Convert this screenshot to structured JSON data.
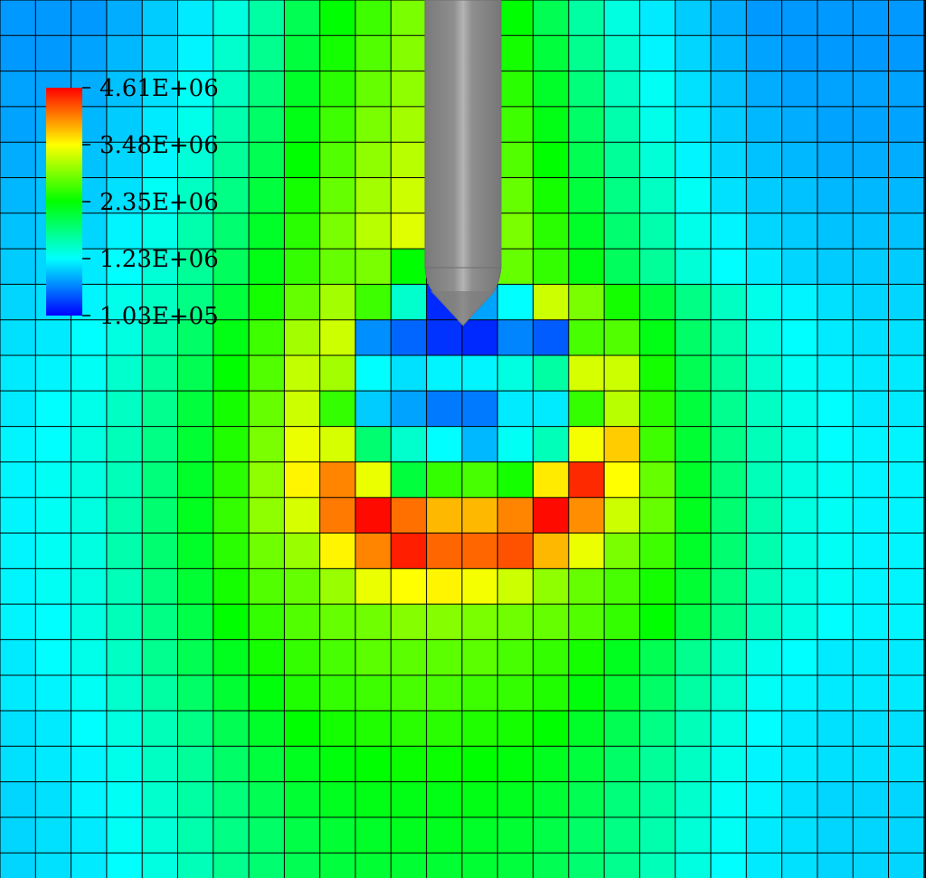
{
  "chart_data": {
    "type": "heatmap",
    "title": "",
    "xlabel": "",
    "ylabel": "",
    "grid": true,
    "legend_placement": "top-left",
    "colorscale": [
      "#0000ff",
      "#00ffff",
      "#00ff00",
      "#ffff00",
      "#ff0000"
    ],
    "colorbar": {
      "min": 103000,
      "max": 4610000,
      "tick_labels": [
        "4.61E+06",
        "3.48E+06",
        "2.35E+06",
        "1.23E+06",
        "1.03E+05"
      ]
    },
    "indenter": {
      "color": "#8c8c8c",
      "shape": "cylinder-conical-tip"
    },
    "rows": [
      [
        0.15,
        0.15,
        0.15,
        0.17,
        0.2,
        0.23,
        0.28,
        0.34,
        0.42,
        0.5,
        0.56,
        0.62,
        0.62,
        0.56,
        0.5,
        0.42,
        0.34,
        0.28,
        0.23,
        0.2,
        0.17,
        0.15,
        0.15,
        0.15,
        0.15,
        0.15
      ],
      [
        0.15,
        0.15,
        0.16,
        0.18,
        0.21,
        0.24,
        0.3,
        0.36,
        0.44,
        0.52,
        0.58,
        0.63,
        0.63,
        0.58,
        0.52,
        0.44,
        0.36,
        0.3,
        0.24,
        0.21,
        0.18,
        0.16,
        0.15,
        0.15,
        0.15,
        0.15
      ],
      [
        0.16,
        0.16,
        0.17,
        0.19,
        0.22,
        0.26,
        0.31,
        0.38,
        0.46,
        0.54,
        0.6,
        0.64,
        0.64,
        0.6,
        0.54,
        0.46,
        0.38,
        0.31,
        0.26,
        0.22,
        0.19,
        0.17,
        0.16,
        0.16,
        0.16,
        0.16
      ],
      [
        0.16,
        0.17,
        0.18,
        0.2,
        0.23,
        0.27,
        0.33,
        0.4,
        0.48,
        0.56,
        0.62,
        0.66,
        0.66,
        0.62,
        0.56,
        0.48,
        0.4,
        0.33,
        0.27,
        0.23,
        0.2,
        0.18,
        0.17,
        0.16,
        0.16,
        0.16
      ],
      [
        0.17,
        0.18,
        0.19,
        0.21,
        0.24,
        0.29,
        0.35,
        0.42,
        0.5,
        0.58,
        0.64,
        0.68,
        0.68,
        0.64,
        0.58,
        0.5,
        0.42,
        0.35,
        0.29,
        0.24,
        0.21,
        0.19,
        0.18,
        0.17,
        0.17,
        0.17
      ],
      [
        0.18,
        0.19,
        0.2,
        0.22,
        0.26,
        0.31,
        0.37,
        0.44,
        0.52,
        0.6,
        0.66,
        0.7,
        0.7,
        0.66,
        0.6,
        0.52,
        0.44,
        0.37,
        0.31,
        0.26,
        0.22,
        0.2,
        0.19,
        0.18,
        0.18,
        0.18
      ],
      [
        0.19,
        0.2,
        0.21,
        0.24,
        0.27,
        0.33,
        0.39,
        0.46,
        0.54,
        0.62,
        0.68,
        0.72,
        0.72,
        0.68,
        0.62,
        0.54,
        0.46,
        0.39,
        0.33,
        0.27,
        0.24,
        0.21,
        0.2,
        0.19,
        0.19,
        0.19
      ],
      [
        0.2,
        0.21,
        0.23,
        0.25,
        0.29,
        0.35,
        0.41,
        0.48,
        0.55,
        0.6,
        0.62,
        0.5,
        0.48,
        0.14,
        0.6,
        0.55,
        0.48,
        0.41,
        0.35,
        0.29,
        0.25,
        0.23,
        0.21,
        0.2,
        0.2,
        0.2
      ],
      [
        0.21,
        0.22,
        0.24,
        0.27,
        0.31,
        0.37,
        0.44,
        0.52,
        0.6,
        0.66,
        0.56,
        0.3,
        0.04,
        0.16,
        0.25,
        0.7,
        0.62,
        0.52,
        0.44,
        0.37,
        0.31,
        0.27,
        0.24,
        0.22,
        0.21,
        0.21
      ],
      [
        0.22,
        0.23,
        0.25,
        0.28,
        0.33,
        0.4,
        0.48,
        0.56,
        0.66,
        0.7,
        0.14,
        0.1,
        0.05,
        0.04,
        0.13,
        0.09,
        0.57,
        0.58,
        0.48,
        0.4,
        0.33,
        0.28,
        0.25,
        0.23,
        0.22,
        0.22
      ],
      [
        0.23,
        0.24,
        0.26,
        0.3,
        0.35,
        0.42,
        0.5,
        0.58,
        0.69,
        0.66,
        0.25,
        0.22,
        0.24,
        0.24,
        0.28,
        0.34,
        0.71,
        0.7,
        0.52,
        0.42,
        0.35,
        0.3,
        0.26,
        0.24,
        0.23,
        0.23
      ],
      [
        0.23,
        0.25,
        0.27,
        0.31,
        0.36,
        0.44,
        0.52,
        0.6,
        0.7,
        0.55,
        0.2,
        0.16,
        0.12,
        0.12,
        0.23,
        0.23,
        0.55,
        0.68,
        0.54,
        0.44,
        0.36,
        0.31,
        0.27,
        0.25,
        0.23,
        0.23
      ],
      [
        0.24,
        0.25,
        0.28,
        0.32,
        0.37,
        0.45,
        0.53,
        0.62,
        0.73,
        0.71,
        0.39,
        0.3,
        0.25,
        0.18,
        0.26,
        0.32,
        0.74,
        0.8,
        0.56,
        0.45,
        0.37,
        0.32,
        0.28,
        0.25,
        0.24,
        0.24
      ],
      [
        0.24,
        0.26,
        0.28,
        0.32,
        0.38,
        0.46,
        0.54,
        0.64,
        0.76,
        0.87,
        0.73,
        0.44,
        0.55,
        0.57,
        0.52,
        0.77,
        0.96,
        0.75,
        0.6,
        0.46,
        0.38,
        0.32,
        0.28,
        0.26,
        0.24,
        0.24
      ],
      [
        0.24,
        0.26,
        0.28,
        0.33,
        0.39,
        0.47,
        0.55,
        0.64,
        0.71,
        0.88,
        0.99,
        0.89,
        0.82,
        0.82,
        0.87,
        0.99,
        0.86,
        0.7,
        0.6,
        0.47,
        0.39,
        0.33,
        0.28,
        0.26,
        0.24,
        0.24
      ],
      [
        0.24,
        0.26,
        0.28,
        0.33,
        0.39,
        0.46,
        0.54,
        0.61,
        0.65,
        0.76,
        0.87,
        0.97,
        0.9,
        0.9,
        0.92,
        0.82,
        0.73,
        0.62,
        0.56,
        0.46,
        0.39,
        0.33,
        0.28,
        0.26,
        0.24,
        0.24
      ],
      [
        0.24,
        0.26,
        0.28,
        0.32,
        0.38,
        0.45,
        0.52,
        0.58,
        0.6,
        0.65,
        0.73,
        0.75,
        0.76,
        0.74,
        0.7,
        0.64,
        0.6,
        0.57,
        0.52,
        0.45,
        0.38,
        0.32,
        0.28,
        0.26,
        0.24,
        0.24
      ],
      [
        0.24,
        0.25,
        0.28,
        0.32,
        0.37,
        0.43,
        0.5,
        0.55,
        0.58,
        0.6,
        0.61,
        0.63,
        0.63,
        0.62,
        0.61,
        0.6,
        0.58,
        0.55,
        0.5,
        0.43,
        0.37,
        0.32,
        0.28,
        0.25,
        0.24,
        0.24
      ],
      [
        0.23,
        0.25,
        0.27,
        0.31,
        0.36,
        0.42,
        0.47,
        0.52,
        0.55,
        0.57,
        0.59,
        0.59,
        0.59,
        0.59,
        0.57,
        0.55,
        0.52,
        0.47,
        0.42,
        0.36,
        0.31,
        0.27,
        0.25,
        0.23,
        0.23,
        0.23
      ],
      [
        0.23,
        0.24,
        0.26,
        0.3,
        0.34,
        0.4,
        0.45,
        0.49,
        0.53,
        0.55,
        0.56,
        0.57,
        0.57,
        0.56,
        0.55,
        0.53,
        0.49,
        0.45,
        0.4,
        0.34,
        0.3,
        0.26,
        0.24,
        0.23,
        0.23,
        0.23
      ],
      [
        0.22,
        0.23,
        0.25,
        0.28,
        0.32,
        0.37,
        0.42,
        0.46,
        0.5,
        0.52,
        0.53,
        0.54,
        0.54,
        0.53,
        0.52,
        0.5,
        0.46,
        0.42,
        0.37,
        0.32,
        0.28,
        0.25,
        0.23,
        0.22,
        0.22,
        0.22
      ],
      [
        0.22,
        0.23,
        0.24,
        0.27,
        0.31,
        0.35,
        0.4,
        0.44,
        0.47,
        0.49,
        0.5,
        0.51,
        0.51,
        0.5,
        0.49,
        0.47,
        0.44,
        0.4,
        0.35,
        0.31,
        0.27,
        0.24,
        0.23,
        0.22,
        0.22,
        0.22
      ],
      [
        0.21,
        0.22,
        0.24,
        0.26,
        0.3,
        0.34,
        0.38,
        0.42,
        0.45,
        0.47,
        0.48,
        0.48,
        0.48,
        0.48,
        0.47,
        0.45,
        0.42,
        0.38,
        0.34,
        0.3,
        0.26,
        0.24,
        0.22,
        0.21,
        0.21,
        0.21
      ],
      [
        0.21,
        0.22,
        0.23,
        0.26,
        0.29,
        0.33,
        0.37,
        0.4,
        0.43,
        0.45,
        0.46,
        0.47,
        0.47,
        0.46,
        0.45,
        0.43,
        0.4,
        0.37,
        0.33,
        0.29,
        0.26,
        0.23,
        0.22,
        0.21,
        0.21,
        0.21
      ],
      [
        0.21,
        0.22,
        0.23,
        0.25,
        0.28,
        0.32,
        0.36,
        0.39,
        0.42,
        0.44,
        0.45,
        0.45,
        0.45,
        0.45,
        0.44,
        0.42,
        0.39,
        0.36,
        0.32,
        0.28,
        0.25,
        0.23,
        0.22,
        0.21,
        0.21,
        0.21
      ]
    ]
  }
}
